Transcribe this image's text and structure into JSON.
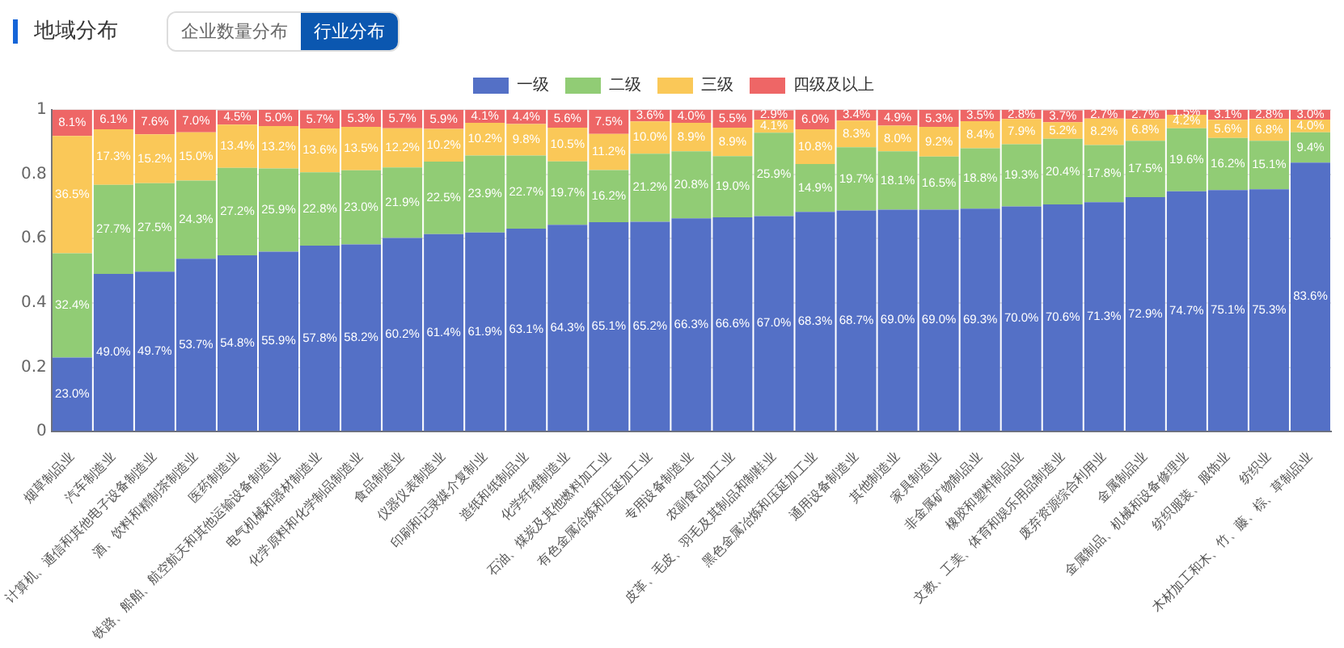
{
  "chart_data": {
    "type": "bar",
    "title": "地域分布",
    "annotations": [
      "企业数量分布",
      "行业分布"
    ],
    "stacked": true,
    "categories": [
      "烟草制品业",
      "汽车制造业",
      "计算机、通信和其他电子设备制造业",
      "酒、饮料和精制茶制造业",
      "医药制造业",
      "铁路、船舶、航空航天和其他运输设备制造业",
      "电气机械和器材制造业",
      "化学原料和化学制品制造业",
      "食品制造业",
      "仪器仪表制造业",
      "印刷和记录媒介复制业",
      "造纸和纸制品业",
      "化学纤维制造业",
      "石油、煤炭及其他燃料加工业",
      "有色金属冶炼和压延加工业",
      "专用设备制造业",
      "农副食品加工业",
      "皮革、毛皮、羽毛及其制品和制鞋业",
      "黑色金属冶炼和压延加工业",
      "通用设备制造业",
      "其他制造业",
      "家具制造业",
      "非金属矿物制品业",
      "橡胶和塑料制品业",
      "文教、工美、体育和娱乐用品制造业",
      "废弃资源综合利用业",
      "金属制品业",
      "金属制品、机械和设备修理业",
      "纺织服装、服饰业",
      "纺织业",
      "木材加工和木、竹、藤、棕、草制品业"
    ],
    "series": [
      {
        "name": "一级",
        "color": "#5470c6",
        "values": [
          0.23,
          0.49,
          0.497,
          0.537,
          0.548,
          0.559,
          0.578,
          0.582,
          0.602,
          0.614,
          0.619,
          0.631,
          0.643,
          0.651,
          0.652,
          0.663,
          0.666,
          0.67,
          0.683,
          0.687,
          0.69,
          0.69,
          0.693,
          0.7,
          0.706,
          0.713,
          0.729,
          0.747,
          0.751,
          0.753,
          0.836
        ],
        "value_labels": [
          "23.0%",
          "49.0%",
          "49.7%",
          "53.7%",
          "54.8%",
          "55.9%",
          "57.8%",
          "58.2%",
          "60.2%",
          "61.4%",
          "61.9%",
          "63.1%",
          "64.3%",
          "65.1%",
          "65.2%",
          "66.3%",
          "66.6%",
          "67.0%",
          "68.3%",
          "68.7%",
          "69.0%",
          "69.0%",
          "69.3%",
          "70.0%",
          "70.6%",
          "71.3%",
          "72.9%",
          "74.7%",
          "75.1%",
          "75.3%",
          "83.6%"
        ]
      },
      {
        "name": "二级",
        "color": "#91cc75",
        "values": [
          0.324,
          0.277,
          0.275,
          0.243,
          0.272,
          0.259,
          0.228,
          0.23,
          0.219,
          0.225,
          0.239,
          0.227,
          0.197,
          0.162,
          0.212,
          0.208,
          0.19,
          0.259,
          0.149,
          0.197,
          0.181,
          0.165,
          0.188,
          0.193,
          0.204,
          0.178,
          0.175,
          0.196,
          0.162,
          0.151,
          0.094
        ],
        "value_labels": [
          "32.4%",
          "27.7%",
          "27.5%",
          "24.3%",
          "27.2%",
          "25.9%",
          "22.8%",
          "23.0%",
          "21.9%",
          "22.5%",
          "23.9%",
          "22.7%",
          "19.7%",
          "16.2%",
          "21.2%",
          "20.8%",
          "19.0%",
          "25.9%",
          "14.9%",
          "19.7%",
          "18.1%",
          "16.5%",
          "18.8%",
          "19.3%",
          "20.4%",
          "17.8%",
          "17.5%",
          "19.6%",
          "16.2%",
          "15.1%",
          "9.4%"
        ]
      },
      {
        "name": "三级",
        "color": "#fac858",
        "values": [
          0.365,
          0.173,
          0.152,
          0.15,
          0.134,
          0.132,
          0.136,
          0.135,
          0.122,
          0.102,
          0.102,
          0.098,
          0.105,
          0.112,
          0.1,
          0.089,
          0.089,
          0.041,
          0.108,
          0.083,
          0.08,
          0.092,
          0.084,
          0.079,
          0.052,
          0.082,
          0.068,
          0.042,
          0.056,
          0.068,
          0.04
        ],
        "value_labels": [
          "36.5%",
          "17.3%",
          "15.2%",
          "15.0%",
          "13.4%",
          "13.2%",
          "13.6%",
          "13.5%",
          "12.2%",
          "10.2%",
          "10.2%",
          "9.8%",
          "10.5%",
          "11.2%",
          "10.0%",
          "8.9%",
          "8.9%",
          "4.1%",
          "10.8%",
          "8.3%",
          "8.0%",
          "9.2%",
          "8.4%",
          "7.9%",
          "5.2%",
          "8.2%",
          "6.8%",
          "4.2%",
          "5.6%",
          "6.8%",
          "4.0%"
        ]
      },
      {
        "name": "四级及以上",
        "color": "#ee6666",
        "values": [
          0.081,
          0.061,
          0.076,
          0.07,
          0.045,
          0.05,
          0.057,
          0.053,
          0.057,
          0.059,
          0.041,
          0.044,
          0.056,
          0.075,
          0.036,
          0.04,
          0.055,
          0.029,
          0.06,
          0.034,
          0.049,
          0.053,
          0.035,
          0.028,
          0.037,
          0.027,
          0.027,
          0.015,
          0.031,
          0.028,
          0.03
        ],
        "value_labels": [
          "8.1%",
          "6.1%",
          "7.6%",
          "7.0%",
          "4.5%",
          "5.0%",
          "5.7%",
          "5.3%",
          "5.7%",
          "5.9%",
          "4.1%",
          "4.4%",
          "5.6%",
          "7.5%",
          "3.6%",
          "4.0%",
          "5.5%",
          "2.9%",
          "6.0%",
          "3.4%",
          "4.9%",
          "5.3%",
          "3.5%",
          "2.8%",
          "3.7%",
          "2.7%",
          "2.7%",
          "1.5%",
          "3.1%",
          "2.8%",
          "3.0%"
        ]
      }
    ],
    "ylim": [
      0,
      1
    ],
    "yticks": [
      0,
      0.2,
      0.4,
      0.6,
      0.8,
      1
    ],
    "grid": "y",
    "legend": "top"
  }
}
